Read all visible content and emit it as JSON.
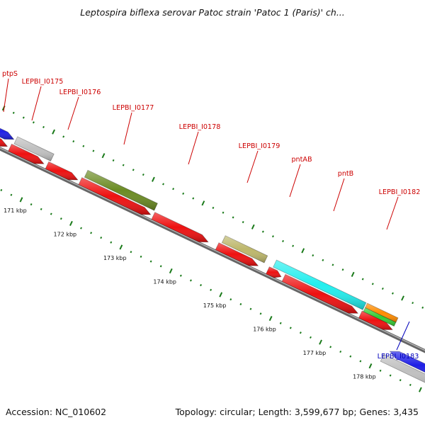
{
  "title": "Leptospira biflexa serovar Patoc strain 'Patoc 1 (Paris)' ch...",
  "accession": "Accession: NC_010602",
  "topology": "Topology: circular; Length: 3,599,677 bp; Genes: 3,435",
  "colors": {
    "red": "#ee1111",
    "grey": "#c0c0c0",
    "blue": "#1f1fe6",
    "olive": "#6b8b23",
    "khaki": "#bdb76b",
    "cyan": "#22eeee",
    "orange": "#ff8c00",
    "green": "#33cc33",
    "label_forward": "#cc0000",
    "label_reverse": "#0000bb",
    "backbone": "#808080",
    "tick_dots": "#1a7a1a"
  },
  "axis_ticks": [
    {
      "label": "171 kbp",
      "kbp": 171
    },
    {
      "label": "172 kbp",
      "kbp": 172
    },
    {
      "label": "173 kbp",
      "kbp": 173
    },
    {
      "label": "174 kbp",
      "kbp": 174
    },
    {
      "label": "175 kbp",
      "kbp": 175
    },
    {
      "label": "176 kbp",
      "kbp": 176
    },
    {
      "label": "177 kbp",
      "kbp": 177
    },
    {
      "label": "178 kbp",
      "kbp": 178
    }
  ],
  "features": [
    {
      "name": "ptpS",
      "color": "blue"
    },
    {
      "name": "LEPBI_I0175",
      "color": "grey"
    },
    {
      "name": "LEPBI_I0176"
    },
    {
      "name": "LEPBI_I0177",
      "color": "olive"
    },
    {
      "name": "LEPBI_I0178"
    },
    {
      "name": "LEPBI_I0179",
      "color": "khaki"
    },
    {
      "name": "pntAB",
      "color": "cyan"
    },
    {
      "name": "pntB"
    },
    {
      "name": "LEPBI_I0182",
      "color": "orange"
    },
    {
      "name": "LEPBI_I0183",
      "color": "grey"
    }
  ]
}
